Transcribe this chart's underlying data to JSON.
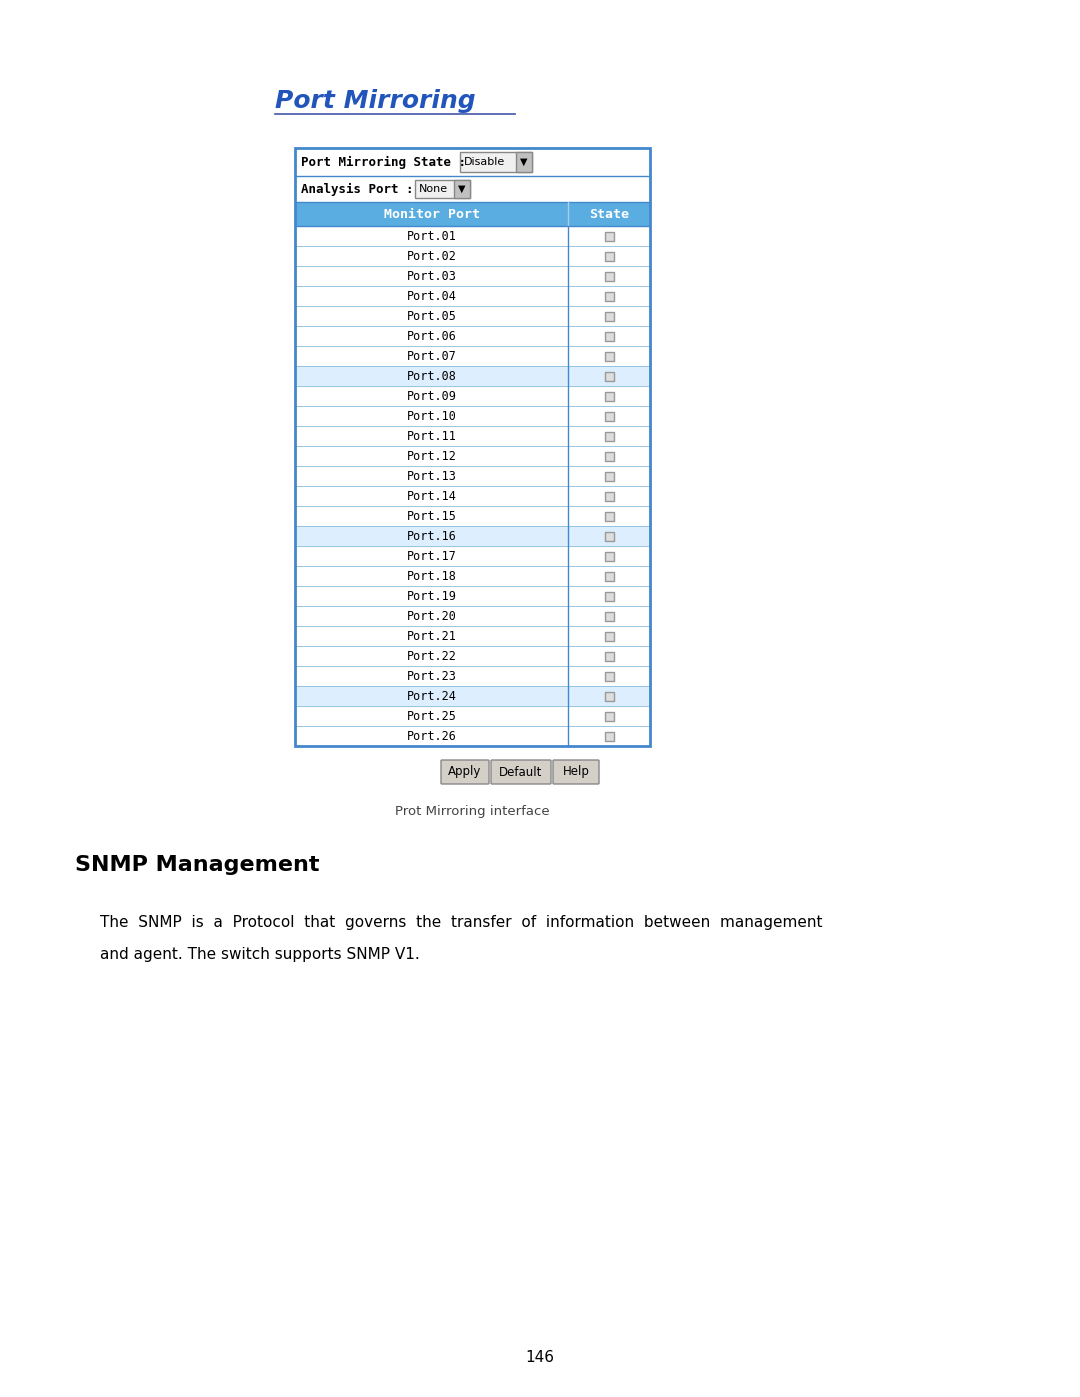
{
  "page_title": "Port Mirroring",
  "section_heading": "SNMP Management",
  "caption": "Prot Mirroring interface",
  "page_number": "146",
  "title_color": "#2255bb",
  "title_underline_color": "#4455aa",
  "header_bg": "#5aade0",
  "header_text": [
    "Monitor Port",
    "State"
  ],
  "row_bg_normal": "#ffffff",
  "row_bg_alt": "#ddeeff",
  "row_border": "#88bbdd",
  "ports": [
    "Port.01",
    "Port.02",
    "Port.03",
    "Port.04",
    "Port.05",
    "Port.06",
    "Port.07",
    "Port.08",
    "Port.09",
    "Port.10",
    "Port.11",
    "Port.12",
    "Port.13",
    "Port.14",
    "Port.15",
    "Port.16",
    "Port.17",
    "Port.18",
    "Port.19",
    "Port.20",
    "Port.21",
    "Port.22",
    "Port.23",
    "Port.24",
    "Port.25",
    "Port.26"
  ],
  "highlighted_rows": [
    7,
    15,
    23
  ],
  "table_border": "#4488cc",
  "button_bg": "#d4d0c8",
  "button_border": "#888888",
  "buttons": [
    "Apply",
    "Default",
    "Help"
  ],
  "top_label1": "Port Mirroring State :",
  "top_label2": "Analysis Port :",
  "dropdown1_val": "Disable",
  "dropdown2_val": "None",
  "body_line1": "The  SNMP  is  a  Protocol  that  governs  the  transfer  of  information  between  management",
  "body_line2": "and agent. The switch supports SNMP V1."
}
